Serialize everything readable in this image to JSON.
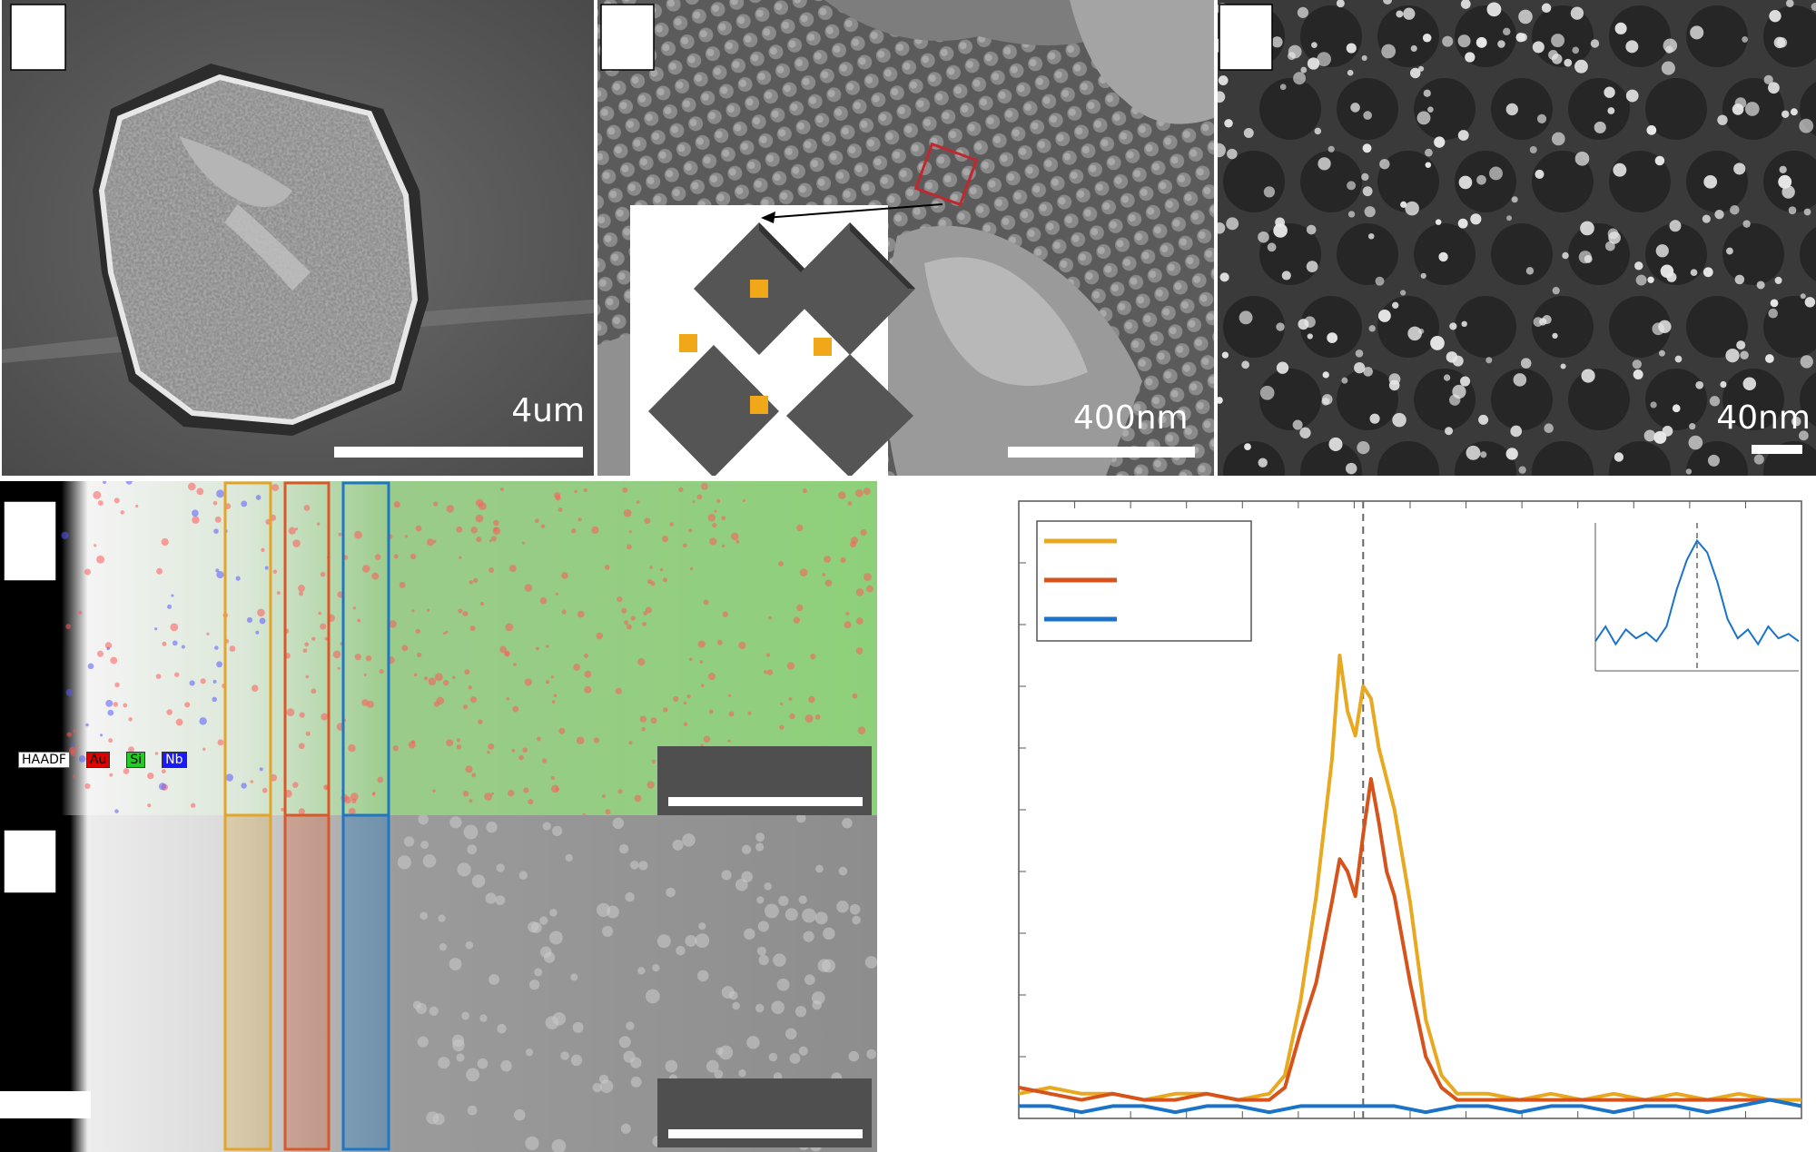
{
  "figure": {
    "panel_a": {
      "scale_bar_label": "4um"
    },
    "panel_b": {
      "scale_bar_label": "400nm"
    },
    "panel_c": {
      "scale_bar_label": "40nm"
    },
    "panel_d": {
      "legend": [
        {
          "text": "HAADF",
          "color": "#ffffff"
        },
        {
          "text": "Au",
          "color": "#e00000"
        },
        {
          "text": "Si",
          "color": "#22cc22"
        },
        {
          "text": "Nb",
          "color": "#1a1aff"
        }
      ]
    },
    "strip_colors": {
      "gold": "#e3a42a",
      "orange": "#d9582a",
      "blue": "#1f77c4"
    }
  },
  "chart_data": {
    "type": "line",
    "title": "",
    "xlabel": "",
    "ylabel": "",
    "grid": false,
    "legend_placement": "top-left",
    "xlim": [
      0,
      100
    ],
    "ylim": [
      0,
      1
    ],
    "dashed_reference_x": 44,
    "series": [
      {
        "color": "#e8a820",
        "x": [
          0,
          4,
          8,
          12,
          16,
          20,
          24,
          28,
          32,
          34,
          36,
          38,
          40,
          41,
          42,
          43,
          44,
          45,
          46,
          47,
          48,
          50,
          52,
          54,
          56,
          58,
          60,
          64,
          68,
          72,
          76,
          80,
          84,
          88,
          92,
          96,
          100
        ],
        "y": [
          0.04,
          0.05,
          0.04,
          0.04,
          0.03,
          0.04,
          0.04,
          0.03,
          0.04,
          0.07,
          0.19,
          0.36,
          0.58,
          0.75,
          0.66,
          0.62,
          0.7,
          0.68,
          0.6,
          0.55,
          0.5,
          0.35,
          0.16,
          0.07,
          0.04,
          0.04,
          0.04,
          0.03,
          0.04,
          0.03,
          0.04,
          0.03,
          0.04,
          0.03,
          0.04,
          0.03,
          0.03
        ]
      },
      {
        "color": "#d6531b",
        "x": [
          0,
          4,
          8,
          12,
          16,
          20,
          24,
          28,
          32,
          34,
          36,
          38,
          40,
          41,
          42,
          43,
          44,
          45,
          46,
          47,
          48,
          50,
          52,
          54,
          56,
          58,
          60,
          64,
          68,
          72,
          76,
          80,
          84,
          88,
          92,
          96,
          100
        ],
        "y": [
          0.05,
          0.04,
          0.03,
          0.04,
          0.03,
          0.03,
          0.04,
          0.03,
          0.03,
          0.05,
          0.14,
          0.22,
          0.35,
          0.42,
          0.4,
          0.36,
          0.46,
          0.55,
          0.48,
          0.4,
          0.36,
          0.22,
          0.1,
          0.05,
          0.03,
          0.03,
          0.03,
          0.03,
          0.03,
          0.03,
          0.03,
          0.03,
          0.03,
          0.03,
          0.03,
          0.03,
          0.02
        ]
      },
      {
        "color": "#1a73c8",
        "x": [
          0,
          4,
          8,
          12,
          16,
          20,
          24,
          28,
          32,
          36,
          40,
          44,
          48,
          52,
          56,
          60,
          64,
          68,
          72,
          76,
          80,
          84,
          88,
          92,
          96,
          100
        ],
        "y": [
          0.02,
          0.02,
          0.01,
          0.02,
          0.02,
          0.01,
          0.02,
          0.02,
          0.01,
          0.02,
          0.02,
          0.02,
          0.02,
          0.01,
          0.02,
          0.02,
          0.01,
          0.02,
          0.02,
          0.01,
          0.02,
          0.02,
          0.01,
          0.02,
          0.03,
          0.02
        ]
      }
    ],
    "inset": {
      "color": "#1a73c8",
      "x": [
        0,
        5,
        10,
        15,
        20,
        25,
        30,
        35,
        40,
        45,
        50,
        55,
        60,
        65,
        70,
        75,
        80,
        85,
        90,
        95,
        100
      ],
      "y": [
        0.2,
        0.3,
        0.18,
        0.28,
        0.22,
        0.26,
        0.2,
        0.3,
        0.55,
        0.75,
        0.88,
        0.8,
        0.6,
        0.35,
        0.22,
        0.28,
        0.18,
        0.3,
        0.22,
        0.25,
        0.2
      ],
      "dashed_reference_x": 50
    }
  }
}
